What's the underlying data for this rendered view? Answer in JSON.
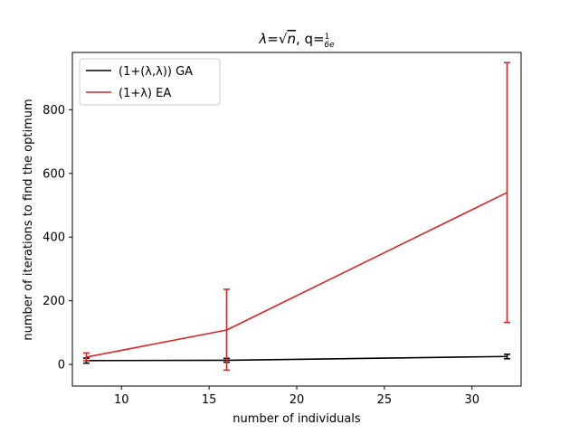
{
  "chart_data": {
    "type": "line",
    "title": "λ=√n, q=1/(6e)",
    "title_parts": {
      "lambda": "λ",
      "eq1": "=",
      "sqrt": "√",
      "n": "n",
      "comma_q": ", q=",
      "num": "1",
      "den": "6e"
    },
    "xlabel": "number of individuals",
    "ylabel": "number of iterations to find the optimum",
    "xlim": [
      7.2,
      32.8
    ],
    "ylim": [
      -68,
      980
    ],
    "xticks": [
      10,
      15,
      20,
      25,
      30
    ],
    "xtick_labels": [
      "10",
      "15",
      "20",
      "25",
      "30"
    ],
    "yticks": [
      0,
      200,
      400,
      600,
      800
    ],
    "ytick_labels": [
      "0",
      "200",
      "400",
      "600",
      "800"
    ],
    "grid": false,
    "legend_position": "top-left",
    "x": [
      8,
      16,
      32
    ],
    "series": [
      {
        "name": "(1+(λ,λ)) GA",
        "color": "#000000",
        "values": [
          12,
          13,
          25
        ],
        "err_low": [
          4,
          7,
          18
        ],
        "err_high": [
          20,
          19,
          32
        ]
      },
      {
        "name": "(1+λ) EA",
        "color": "#d62728",
        "values": [
          23,
          108,
          540
        ],
        "err_low": [
          12,
          -18,
          132
        ],
        "err_high": [
          36,
          236,
          948
        ]
      }
    ]
  }
}
